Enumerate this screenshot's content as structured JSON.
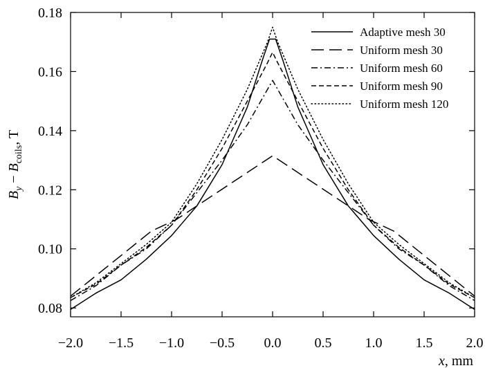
{
  "chart_data": {
    "type": "line",
    "xlabel": "x, mm",
    "ylabel": "B_y − B_coils, T",
    "xlim": [
      -2.0,
      2.0
    ],
    "ylim": [
      0.077,
      0.18
    ],
    "xticks": [
      -2.0,
      -1.5,
      -1.0,
      -0.5,
      0.0,
      0.5,
      1.0,
      1.5,
      2.0
    ],
    "xtick_labels": [
      "−2.0",
      "−1.5",
      "−1.0",
      "−0.5",
      "0.0",
      "0.5",
      "1.0",
      "1.5",
      "2.0"
    ],
    "yticks": [
      0.08,
      0.1,
      0.12,
      0.14,
      0.16,
      0.18
    ],
    "ytick_labels": [
      "0.08",
      "0.10",
      "0.12",
      "0.14",
      "0.16",
      "0.18"
    ],
    "legend_position": "top-right",
    "grid": false,
    "series": [
      {
        "name": "Adaptive mesh 30",
        "dash": "solid",
        "x": [
          -2.0,
          -1.75,
          -1.5,
          -1.25,
          -1.0,
          -0.75,
          -0.5,
          -0.25,
          -0.1,
          -0.03,
          0.03,
          0.1,
          0.25,
          0.5,
          0.75,
          1.0,
          1.25,
          1.5,
          1.75,
          2.0
        ],
        "y": [
          0.0795,
          0.085,
          0.0895,
          0.0965,
          0.1045,
          0.1145,
          0.1285,
          0.148,
          0.164,
          0.171,
          0.171,
          0.164,
          0.148,
          0.1285,
          0.1145,
          0.1045,
          0.0965,
          0.0895,
          0.085,
          0.0795
        ]
      },
      {
        "name": "Uniform mesh 30",
        "dash": "long-dash",
        "x": [
          -2.0,
          -1.2,
          -0.95,
          0.0,
          0.95,
          1.2,
          2.0
        ],
        "y": [
          0.084,
          0.106,
          0.11,
          0.1315,
          0.11,
          0.106,
          0.084
        ]
      },
      {
        "name": "Uniform mesh 60",
        "dash": "dash-dot",
        "x": [
          -2.0,
          -1.75,
          -1.5,
          -1.25,
          -1.0,
          -0.75,
          -0.5,
          -0.25,
          -0.05,
          0.0,
          0.05,
          0.25,
          0.5,
          0.75,
          1.0,
          1.25,
          1.5,
          1.75,
          2.0
        ],
        "y": [
          0.0825,
          0.0875,
          0.0945,
          0.1,
          0.108,
          0.119,
          0.13,
          0.142,
          0.154,
          0.157,
          0.154,
          0.142,
          0.13,
          0.119,
          0.108,
          0.1,
          0.0945,
          0.0875,
          0.0825
        ]
      },
      {
        "name": "Uniform mesh 90",
        "dash": "short-dash",
        "x": [
          -2.0,
          -1.75,
          -1.5,
          -1.25,
          -1.0,
          -0.75,
          -0.5,
          -0.25,
          -0.05,
          0.0,
          0.05,
          0.25,
          0.5,
          0.75,
          1.0,
          1.25,
          1.5,
          1.75,
          2.0
        ],
        "y": [
          0.0835,
          0.088,
          0.0945,
          0.1005,
          0.108,
          0.12,
          0.134,
          0.15,
          0.163,
          0.1665,
          0.163,
          0.15,
          0.134,
          0.12,
          0.108,
          0.1005,
          0.0945,
          0.088,
          0.0835
        ]
      },
      {
        "name": "Uniform mesh 120",
        "dash": "dotted",
        "x": [
          -2.0,
          -1.75,
          -1.5,
          -1.25,
          -1.0,
          -0.75,
          -0.5,
          -0.25,
          -0.05,
          0.0,
          0.05,
          0.25,
          0.5,
          0.75,
          1.0,
          1.25,
          1.5,
          1.75,
          2.0
        ],
        "y": [
          0.0835,
          0.0885,
          0.095,
          0.1015,
          0.109,
          0.122,
          0.137,
          0.154,
          0.17,
          0.175,
          0.17,
          0.154,
          0.137,
          0.122,
          0.109,
          0.1015,
          0.095,
          0.0885,
          0.0835
        ]
      }
    ]
  }
}
